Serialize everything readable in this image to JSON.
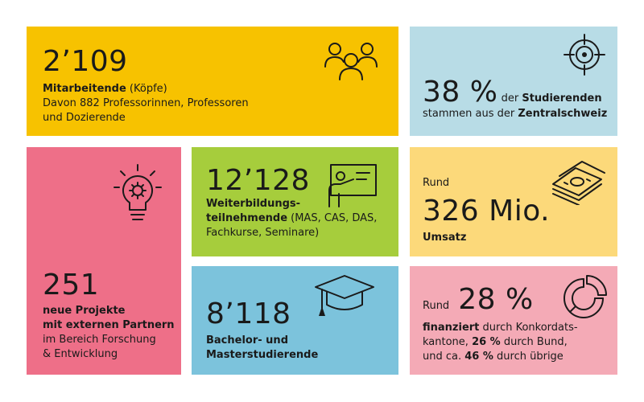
{
  "staff": {
    "value": "2’109",
    "label_bold": "Mitarbeitende",
    "label_rest": " (Köpfe)",
    "line2": "Davon 882 Professorinnen, Professoren",
    "line3": "und Dozierende",
    "icon": "people-group-icon",
    "color": "#f7c200"
  },
  "students_origin": {
    "value": "38 %",
    "text_a": " der ",
    "text_b": "Studierenden",
    "line2_a": "stammen aus der ",
    "line2_b": "Zentralschweiz",
    "icon": "target-icon",
    "color": "#b8dce6"
  },
  "projects": {
    "value": "251",
    "line1": "neue Projekte",
    "line2": "mit externen Partnern",
    "line3": "im Bereich Forschung",
    "line4": "& Entwicklung",
    "icon": "lightbulb-gear-icon",
    "color": "#ee6f88"
  },
  "continuing": {
    "value": "12’128",
    "line1": "Weiterbildungs-",
    "line2_bold": "teilnehmende",
    "line2_rest": " (MAS, CAS, DAS,",
    "line3": "Fachkurse, Seminare)",
    "icon": "presentation-board-icon",
    "color": "#a6cd3c"
  },
  "revenue": {
    "prefix": "Rund",
    "value": "326 Mio.",
    "label": "Umsatz",
    "icon": "money-stack-icon",
    "color": "#fcd97a"
  },
  "degree_students": {
    "value": "8’118",
    "line1": "Bachelor- und",
    "line2": "Masterstudierende",
    "icon": "graduation-cap-icon",
    "color": "#7cc3dc"
  },
  "funding": {
    "prefix": "Rund",
    "value": "28 %",
    "line1_bold": "finanziert",
    "line1_rest": " durch Konkordats-",
    "line2_a": "kantone, ",
    "line2_b": "26 %",
    "line2_c": " durch Bund,",
    "line3_a": "und ca. ",
    "line3_b": "46 %",
    "line3_c": " durch übrige",
    "icon": "pie-chart-icon",
    "color": "#f4aab6"
  }
}
